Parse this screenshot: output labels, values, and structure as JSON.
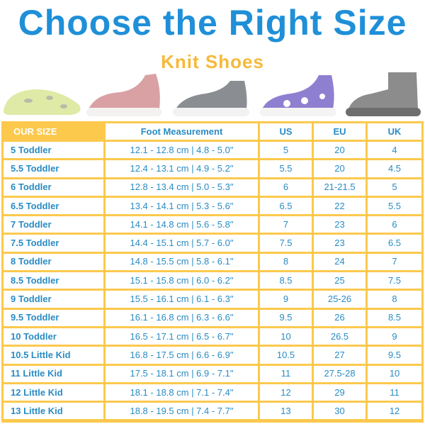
{
  "title": "Choose the Right Size",
  "subtitle": "Knit Shoes",
  "shoes": [
    {
      "name": "lime-leopard",
      "color": "#dfeaa6"
    },
    {
      "name": "pink",
      "color": "#d9a1a4"
    },
    {
      "name": "gray",
      "color": "#8a8d91"
    },
    {
      "name": "purple-daisy",
      "color": "#8f7fd0"
    },
    {
      "name": "gray-high-top",
      "color": "#8c8c8c"
    }
  ],
  "colors": {
    "border": "#fcc94d",
    "text": "#2a8cc3",
    "title": "#1f8fd8",
    "subtitle": "#f6b93a"
  },
  "table": {
    "headers": [
      "OUR SIZE",
      "Foot Measurement",
      "US",
      "EU",
      "UK"
    ],
    "rows": [
      [
        "5 Toddler",
        "12.1 - 12.8 cm | 4.8 - 5.0\"",
        "5",
        "20",
        "4"
      ],
      [
        "5.5 Toddler",
        "12.4 - 13.1 cm | 4.9 - 5.2\"",
        "5.5",
        "20",
        "4.5"
      ],
      [
        "6 Toddler",
        "12.8 - 13.4 cm | 5.0 - 5.3\"",
        "6",
        "21-21.5",
        "5"
      ],
      [
        "6.5 Toddler",
        "13.4 - 14.1 cm | 5.3 - 5.6\"",
        "6.5",
        "22",
        "5.5"
      ],
      [
        "7 Toddler",
        "14.1 - 14.8 cm | 5.6 - 5.8\"",
        "7",
        "23",
        "6"
      ],
      [
        "7.5 Toddler",
        "14.4 - 15.1 cm | 5.7 - 6.0\"",
        "7.5",
        "23",
        "6.5"
      ],
      [
        "8 Toddler",
        "14.8 - 15.5 cm | 5.8 - 6.1\"",
        "8",
        "24",
        "7"
      ],
      [
        "8.5 Toddler",
        "15.1 - 15.8 cm | 6.0 - 6.2\"",
        "8.5",
        "25",
        "7.5"
      ],
      [
        "9 Toddler",
        "15.5 - 16.1 cm | 6.1 - 6.3\"",
        "9",
        "25-26",
        "8"
      ],
      [
        "9.5 Toddler",
        "16.1 - 16.8 cm | 6.3 - 6.6\"",
        "9.5",
        "26",
        "8.5"
      ],
      [
        "10 Toddler",
        "16.5 - 17.1 cm | 6.5 - 6.7\"",
        "10",
        "26.5",
        "9"
      ],
      [
        "10.5 Little Kid",
        "16.8 - 17.5 cm | 6.6 - 6.9\"",
        "10.5",
        "27",
        "9.5"
      ],
      [
        "11 Little Kid",
        "17.5 - 18.1 cm | 6.9 - 7.1\"",
        "11",
        "27.5-28",
        "10"
      ],
      [
        "12 Little Kid",
        "18.1 - 18.8 cm | 7.1 - 7.4\"",
        "12",
        "29",
        "11"
      ],
      [
        "13 Little Kid",
        "18.8 - 19.5 cm | 7.4 - 7.7\"",
        "13",
        "30",
        "12"
      ]
    ]
  }
}
